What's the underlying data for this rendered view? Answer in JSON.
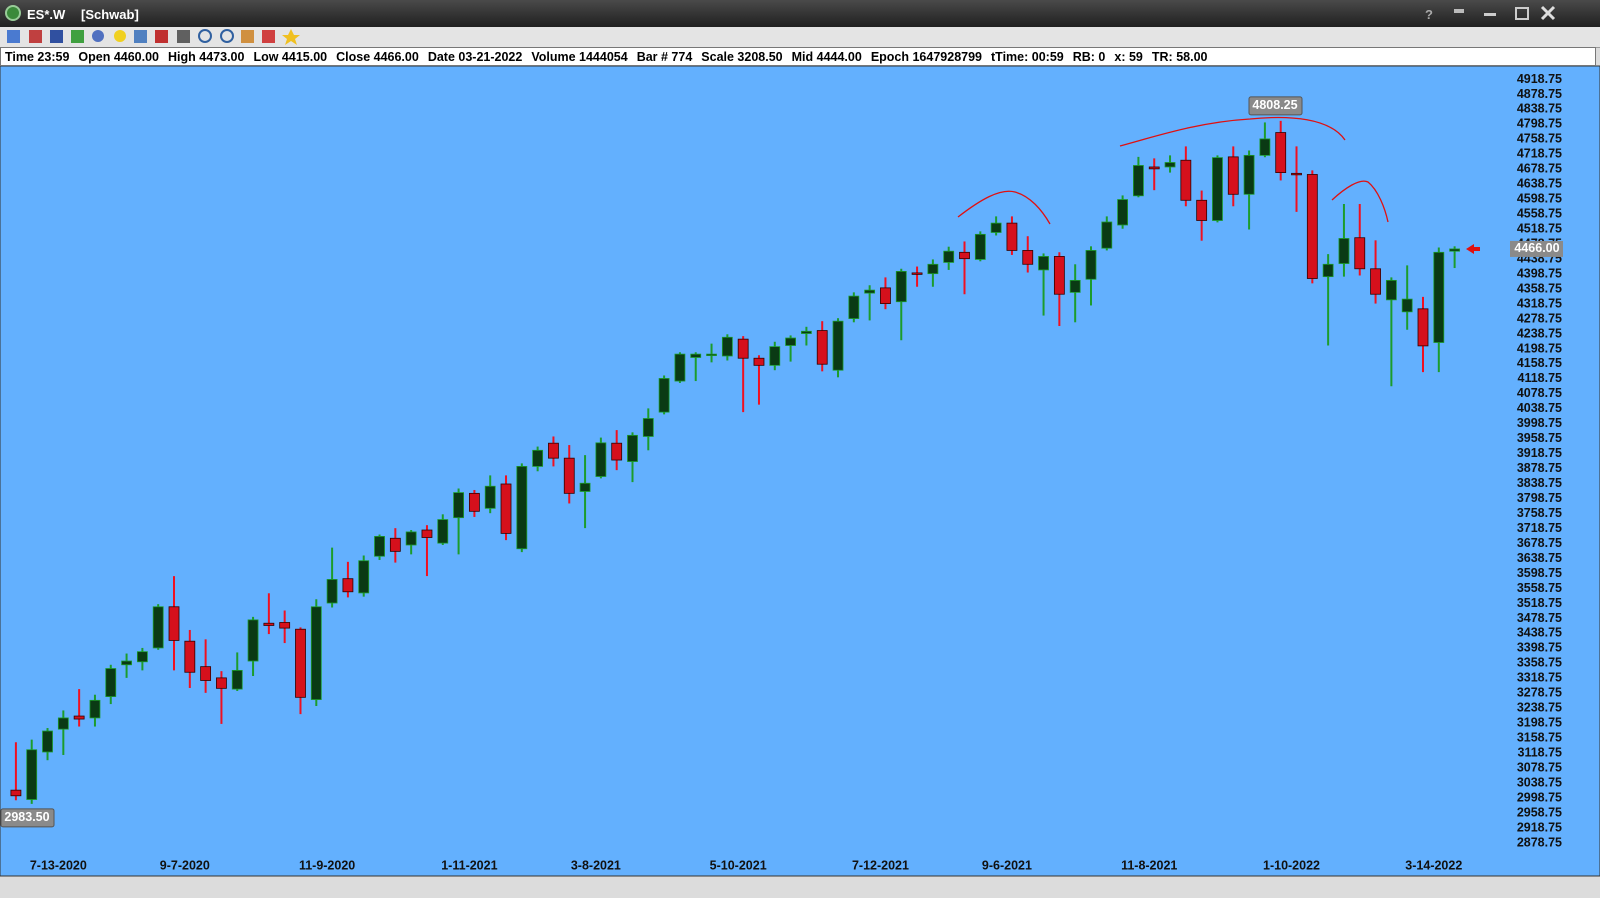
{
  "window": {
    "title": "ES*.W",
    "account": "[Schwab]",
    "help": "?"
  },
  "status_bar": [
    "Time 23:59",
    "Open 4460.00",
    "High 4473.00",
    "Low 4415.00",
    "Close 4466.00",
    "Date 03-21-2022",
    "Volume 1444054",
    "Bar # 774",
    "Scale 3208.50",
    "Mid 4444.00",
    "Epoch 1647928799",
    "tTime: 00:59",
    "RB: 0",
    "x: 59",
    "TR: 58.00"
  ],
  "chart_data": {
    "type": "candlestick",
    "categories": [
      null,
      null,
      null,
      "7-13-2020",
      null,
      null,
      null,
      null,
      null,
      null,
      null,
      "9-7-2020",
      null,
      null,
      null,
      null,
      null,
      null,
      null,
      null,
      "11-9-2020",
      null,
      null,
      null,
      null,
      null,
      null,
      null,
      null,
      "1-11-2021",
      null,
      null,
      null,
      null,
      null,
      null,
      null,
      "3-8-2021",
      null,
      null,
      null,
      null,
      null,
      null,
      null,
      null,
      "5-10-2021",
      null,
      null,
      null,
      null,
      null,
      null,
      null,
      null,
      "7-12-2021",
      null,
      null,
      null,
      null,
      null,
      null,
      null,
      "9-6-2021",
      null,
      null,
      null,
      null,
      null,
      null,
      null,
      null,
      "11-8-2021",
      null,
      null,
      null,
      null,
      null,
      null,
      null,
      null,
      "1-10-2022",
      null,
      null,
      null,
      null,
      null,
      null,
      null,
      null,
      "3-14-2022",
      null
    ],
    "open": [
      3020,
      2995,
      3122,
      3183,
      3218,
      3213,
      3270,
      3355,
      3363,
      3400,
      3510,
      3418,
      3350,
      3320,
      3290,
      3365,
      3466,
      3468,
      3450,
      3262,
      3520,
      3585,
      3547,
      3645,
      3693,
      3675,
      3715,
      3680,
      3748,
      3813,
      3773,
      3838,
      3665,
      3885,
      3947,
      3907,
      3818,
      3858,
      3947,
      3898,
      3965,
      4030,
      4113,
      4176,
      4182,
      4180,
      4225,
      4174,
      4155,
      4208,
      4240,
      4248,
      4142,
      4280,
      4348,
      4362,
      4325,
      4402,
      4400,
      4430,
      4457,
      4438,
      4510,
      4535,
      4462,
      4410,
      4446,
      4350,
      4385,
      4468,
      4530,
      4608,
      4685,
      4685,
      4703,
      4596,
      4542,
      4712,
      4612,
      4716,
      4777,
      4668,
      4665,
      4392,
      4427,
      4496,
      4413,
      4330,
      4298,
      4306,
      4216,
      4460
    ],
    "high": [
      3148,
      3155,
      3186,
      3233,
      3290,
      3275,
      3355,
      3385,
      3400,
      3517,
      3592,
      3448,
      3423,
      3338,
      3388,
      3483,
      3546,
      3500,
      3455,
      3530,
      3668,
      3630,
      3647,
      3703,
      3720,
      3715,
      3728,
      3757,
      3826,
      3822,
      3861,
      3861,
      3893,
      3938,
      3965,
      3942,
      3915,
      3962,
      3982,
      3976,
      4040,
      4128,
      4190,
      4190,
      4213,
      4238,
      4233,
      4182,
      4218,
      4235,
      4258,
      4273,
      4281,
      4350,
      4369,
      4390,
      4413,
      4419,
      4438,
      4472,
      4486,
      4513,
      4553,
      4553,
      4500,
      4454,
      4457,
      4425,
      4473,
      4553,
      4609,
      4712,
      4708,
      4716,
      4740,
      4622,
      4716,
      4740,
      4729,
      4804,
      4808.25,
      4740,
      4676,
      4452,
      4586,
      4586,
      4489,
      4390,
      4422,
      4338,
      4470,
      4473
    ],
    "low": [
      2993,
      2983.5,
      3100,
      3114,
      3190,
      3190,
      3250,
      3320,
      3340,
      3395,
      3340,
      3293,
      3280,
      3197,
      3285,
      3325,
      3437,
      3413,
      3223,
      3245,
      3508,
      3535,
      3537,
      3635,
      3628,
      3650,
      3592,
      3675,
      3650,
      3750,
      3760,
      3688,
      3656,
      3872,
      3885,
      3786,
      3720,
      3853,
      3875,
      3843,
      3928,
      4024,
      4108,
      4113,
      4163,
      4168,
      4030,
      4050,
      4142,
      4165,
      4208,
      4139,
      4123,
      4270,
      4275,
      4305,
      4222,
      4365,
      4365,
      4410,
      4345,
      4433,
      4502,
      4450,
      4403,
      4288,
      4260,
      4270,
      4315,
      4462,
      4520,
      4604,
      4623,
      4670,
      4580,
      4488,
      4537,
      4580,
      4518,
      4711,
      4649,
      4565,
      4374,
      4208,
      4392,
      4395,
      4320,
      4099,
      4250,
      4137,
      4137,
      4415
    ],
    "close": [
      3005,
      3128,
      3178,
      3213,
      3210,
      3260,
      3345,
      3365,
      3390,
      3510,
      3420,
      3335,
      3313,
      3292,
      3340,
      3475,
      3460,
      3453,
      3268,
      3510,
      3583,
      3550,
      3633,
      3698,
      3658,
      3710,
      3695,
      3743,
      3815,
      3765,
      3832,
      3706,
      3885,
      3928,
      3907,
      3813,
      3840,
      3948,
      3902,
      3968,
      4013,
      4120,
      4185,
      4185,
      4185,
      4230,
      4174,
      4155,
      4205,
      4228,
      4246,
      4158,
      4273,
      4340,
      4356,
      4320,
      4406,
      4398,
      4425,
      4460,
      4440,
      4505,
      4535,
      4462,
      4425,
      4446,
      4345,
      4382,
      4462,
      4538,
      4598,
      4689,
      4680,
      4697,
      4596,
      4542,
      4710,
      4612,
      4716,
      4760,
      4670,
      4665,
      4387,
      4425,
      4494,
      4413,
      4345,
      4382,
      4332,
      4207,
      4457,
      4466
    ],
    "up_color": "#1c9c2c",
    "up_body": "#0a3a14",
    "down_color": "#f01020",
    "down_body": "#d5101c",
    "ylim": [
      2838.75,
      4938.75
    ],
    "yticks": [
      2878.75,
      2918.75,
      2958.75,
      2998.75,
      3038.75,
      3078.75,
      3118.75,
      3158.75,
      3198.75,
      3238.75,
      3278.75,
      3318.75,
      3358.75,
      3398.75,
      3438.75,
      3478.75,
      3518.75,
      3558.75,
      3598.75,
      3638.75,
      3678.75,
      3718.75,
      3758.75,
      3798.75,
      3838.75,
      3878.75,
      3918.75,
      3958.75,
      3998.75,
      4038.75,
      4078.75,
      4118.75,
      4158.75,
      4198.75,
      4238.75,
      4278.75,
      4318.75,
      4358.75,
      4398.75,
      4438.75,
      4478.75,
      4518.75,
      4558.75,
      4598.75,
      4638.75,
      4678.75,
      4718.75,
      4758.75,
      4798.75,
      4838.75,
      4878.75,
      4918.75
    ],
    "grid": false,
    "price_labels": [
      {
        "value": 4808.25,
        "label": "4808.25"
      },
      {
        "value": 2983.5,
        "label": "2983.50"
      },
      {
        "value": 4466,
        "label": "4466.00"
      }
    ]
  }
}
